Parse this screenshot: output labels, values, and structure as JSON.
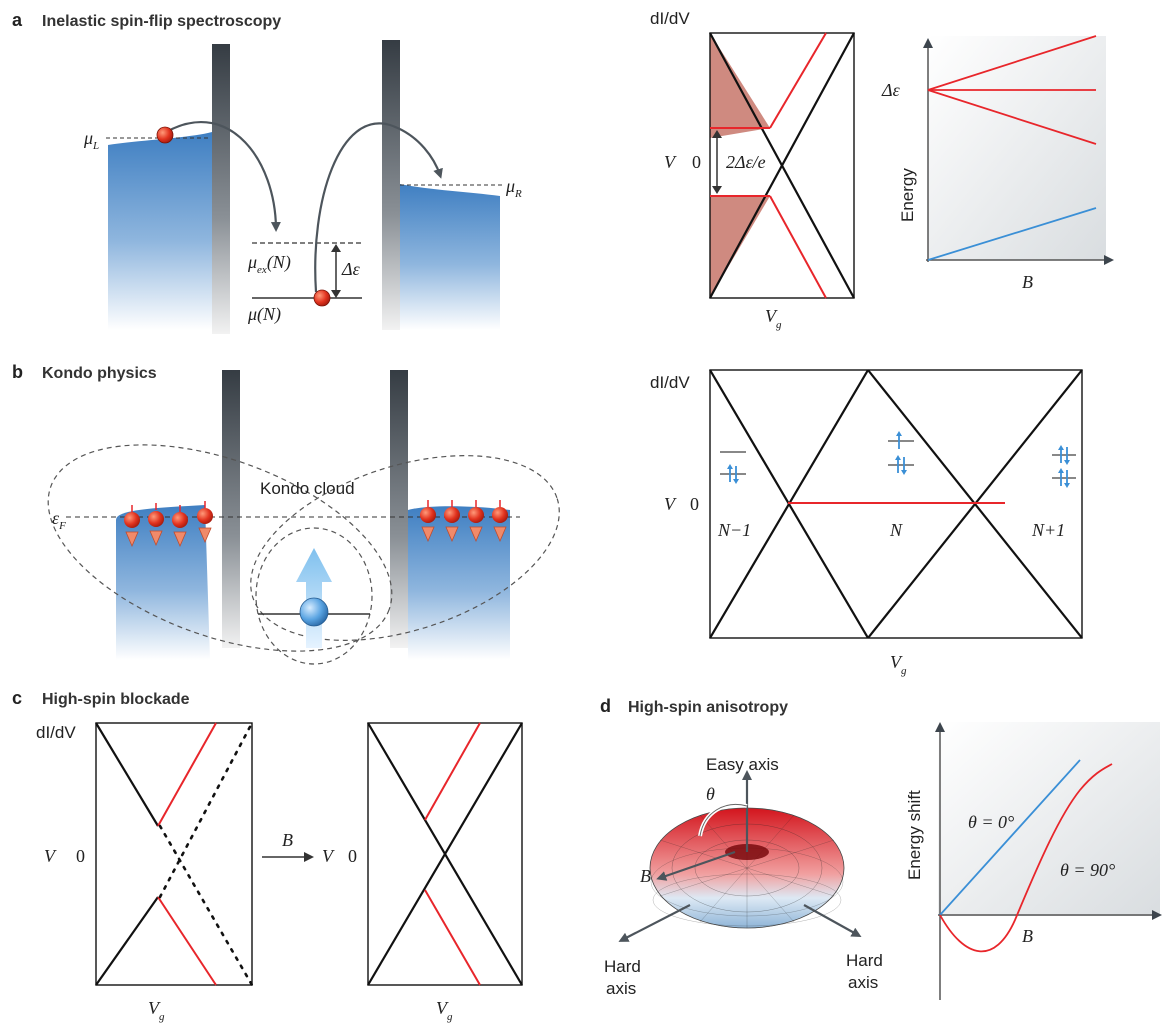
{
  "panels": {
    "a": {
      "letter": "a",
      "title": "Inelastic spin-flip spectroscopy",
      "mu_l": "μ",
      "mu_l_sub": "L",
      "mu_r": "μ",
      "mu_r_sub": "R",
      "mu_ex": "μ",
      "mu_ex_sub": "ex",
      "mu_ex_arg": "(N)",
      "mu_n": "μ(N)",
      "delta_eps": "Δε",
      "stability": {
        "ylabel": "dI/dV",
        "v_label": "V",
        "zero": "0",
        "gap_label": "2Δε/e",
        "xlabel": "V",
        "xlabel_sub": "g"
      },
      "zeeman": {
        "ylabel": "Energy",
        "xlabel": "B",
        "delta_label": "Δε"
      }
    },
    "b": {
      "letter": "b",
      "title": "Kondo physics",
      "eps_f": "ε",
      "eps_f_sub": "F",
      "kondo_cloud": "Kondo cloud",
      "stability": {
        "ylabel": "dI/dV",
        "v_label": "V",
        "zero": "0",
        "region_left": "N−1",
        "region_mid": "N",
        "region_right": "N+1",
        "xlabel": "V",
        "xlabel_sub": "g"
      }
    },
    "c": {
      "letter": "c",
      "title": "High-spin blockade",
      "ylabel": "dI/dV",
      "v_label_left": "V",
      "zero_left": "0",
      "b_arrow_label": "B",
      "v_label_right": "V",
      "zero_right": "0",
      "xlabel_left": "V",
      "xlabel_left_sub": "g",
      "xlabel_right": "V",
      "xlabel_right_sub": "g"
    },
    "d": {
      "letter": "d",
      "title": "High-spin anisotropy",
      "easy_axis": "Easy axis",
      "theta": "θ",
      "b_label": "B",
      "hard_axis_left_1": "Hard",
      "hard_axis_left_2": "axis",
      "hard_axis_right_1": "Hard",
      "hard_axis_right_2": "axis",
      "plot": {
        "ylabel": "Energy shift",
        "xlabel": "B",
        "curve_0": "θ = 0°",
        "curve_90": "θ = 90°"
      }
    }
  },
  "colors": {
    "red": "#e8262b",
    "blue": "#3a8fd6",
    "black": "#111111",
    "lead_blue": "#4a86c5",
    "barrier_dark": "#3d454d",
    "shade_red": "#cf8a80"
  }
}
